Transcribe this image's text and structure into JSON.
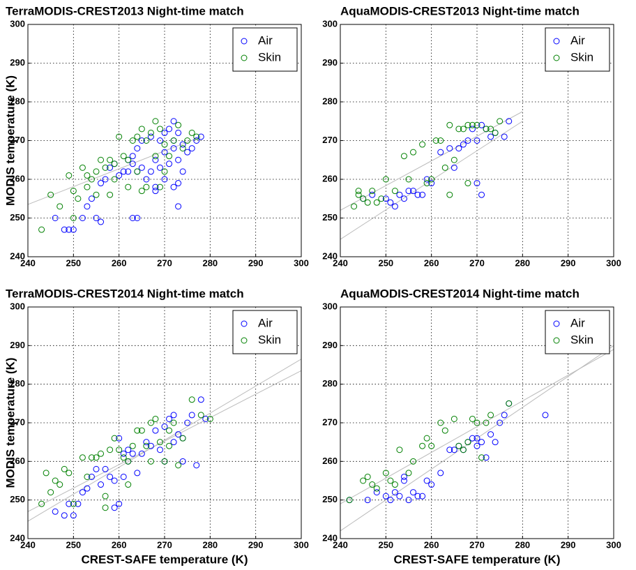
{
  "chart_data": [
    {
      "type": "scatter",
      "title": "TerraMODIS-CREST2013 Night-time match",
      "ylabel": "MODIS temperature (K)",
      "xlim": [
        240,
        300
      ],
      "ylim": [
        240,
        300
      ],
      "xticks": [
        240,
        250,
        260,
        270,
        280,
        290,
        300
      ],
      "yticks": [
        240,
        250,
        260,
        270,
        280,
        290,
        300
      ],
      "grid": true,
      "legend": "upper right",
      "series": [
        {
          "name": "Air",
          "color": "#0000ff",
          "x": [
            246,
            248,
            249,
            250,
            252,
            253,
            254,
            255,
            256,
            256,
            257,
            258,
            259,
            260,
            261,
            262,
            262,
            263,
            263,
            264,
            264,
            265,
            265,
            266,
            267,
            267,
            268,
            268,
            269,
            269,
            270,
            270,
            270,
            271,
            271,
            272,
            272,
            272,
            273,
            273,
            273,
            274,
            274,
            275,
            276,
            277,
            278,
            263,
            264,
            268,
            272,
            273
          ],
          "values": [
            250,
            247,
            247,
            247,
            250,
            253,
            255,
            250,
            249,
            259,
            260,
            263,
            264,
            261,
            262,
            265,
            262,
            266,
            264,
            268,
            262,
            270,
            263,
            260,
            271,
            262,
            257,
            265,
            270,
            263,
            272,
            267,
            260,
            273,
            264,
            275,
            270,
            258,
            253,
            265,
            259,
            269,
            262,
            267,
            268,
            270,
            271,
            250,
            250,
            258,
            268,
            272
          ]
        },
        {
          "name": "Skin",
          "color": "#008000",
          "x": [
            243,
            245,
            247,
            249,
            250,
            250,
            251,
            252,
            253,
            253,
            254,
            255,
            256,
            257,
            258,
            259,
            259,
            260,
            261,
            262,
            263,
            264,
            264,
            265,
            266,
            266,
            267,
            268,
            268,
            269,
            269,
            270,
            270,
            271,
            272,
            273,
            274,
            275,
            276,
            277,
            255,
            258,
            262,
            265
          ],
          "values": [
            247,
            256,
            253,
            261,
            257,
            250,
            255,
            263,
            261,
            258,
            260,
            262,
            265,
            263,
            265,
            264,
            260,
            271,
            266,
            265,
            270,
            271,
            262,
            273,
            270,
            258,
            272,
            275,
            266,
            273,
            258,
            269,
            262,
            266,
            270,
            274,
            268,
            270,
            272,
            271,
            256,
            256,
            258,
            257
          ]
        }
      ],
      "fit_lines": [
        {
          "color": "#bbbbbb",
          "x": [
            240,
            278
          ],
          "values": [
            253.5,
            271
          ]
        }
      ]
    },
    {
      "type": "scatter",
      "title": "AquaMODIS-CREST2013 Night-time match",
      "xlim": [
        240,
        300
      ],
      "ylim": [
        240,
        300
      ],
      "xticks": [
        240,
        250,
        260,
        270,
        280,
        290,
        300
      ],
      "yticks": [
        240,
        250,
        260,
        270,
        280,
        290,
        300
      ],
      "grid": true,
      "legend": "upper right",
      "series": [
        {
          "name": "Air",
          "color": "#0000ff",
          "x": [
            245,
            247,
            250,
            251,
            252,
            253,
            254,
            255,
            256,
            257,
            258,
            259,
            260,
            262,
            264,
            266,
            267,
            268,
            269,
            270,
            271,
            272,
            273,
            274,
            276,
            277,
            270,
            271,
            265
          ],
          "values": [
            255,
            256,
            255,
            254,
            253,
            256,
            255,
            257,
            257,
            256,
            256,
            260,
            259,
            267,
            268,
            268,
            269,
            270,
            273,
            270,
            274,
            273,
            271,
            272,
            271,
            275,
            259,
            256,
            263
          ]
        },
        {
          "name": "Skin",
          "color": "#008000",
          "x": [
            243,
            244,
            244,
            245,
            246,
            247,
            248,
            249,
            250,
            252,
            254,
            255,
            256,
            258,
            259,
            260,
            261,
            262,
            263,
            264,
            265,
            266,
            267,
            268,
            269,
            270,
            272,
            273,
            274,
            275,
            264,
            268
          ],
          "values": [
            253,
            257,
            256,
            255,
            254,
            257,
            254,
            255,
            260,
            257,
            266,
            260,
            267,
            269,
            259,
            260,
            270,
            270,
            263,
            274,
            265,
            273,
            273,
            274,
            274,
            274,
            273,
            273,
            272,
            275,
            256,
            259
          ]
        }
      ],
      "fit_lines": [
        {
          "color": "#bbbbbb",
          "x": [
            240,
            280
          ],
          "values": [
            252,
            277.5
          ]
        },
        {
          "color": "#bbbbbb",
          "x": [
            240,
            280
          ],
          "values": [
            244.5,
            275
          ]
        }
      ]
    },
    {
      "type": "scatter",
      "title": "TerraMODIS-CREST2014 Night-time match",
      "ylabel": "MODIS temperature (K)",
      "xlabel": "CREST-SAFE temperature (K)",
      "xlim": [
        240,
        300
      ],
      "ylim": [
        240,
        300
      ],
      "xticks": [
        240,
        250,
        260,
        270,
        280,
        290,
        300
      ],
      "yticks": [
        240,
        250,
        260,
        270,
        280,
        290,
        300
      ],
      "grid": true,
      "legend": "upper right",
      "series": [
        {
          "name": "Air",
          "color": "#0000ff",
          "x": [
            246,
            248,
            249,
            250,
            251,
            252,
            253,
            254,
            255,
            256,
            257,
            258,
            259,
            259,
            260,
            261,
            261,
            262,
            263,
            264,
            265,
            266,
            267,
            268,
            269,
            270,
            271,
            272,
            273,
            274,
            275,
            276,
            277,
            278,
            279,
            260,
            262,
            270,
            272,
            274
          ],
          "values": [
            247,
            246,
            249,
            246,
            249,
            252,
            253,
            256,
            258,
            254,
            258,
            256,
            255,
            248,
            266,
            256,
            262,
            263,
            262,
            257,
            262,
            265,
            264,
            268,
            263,
            269,
            271,
            272,
            267,
            266,
            270,
            272,
            259,
            276,
            271,
            249,
            260,
            260,
            265,
            260
          ]
        },
        {
          "name": "Skin",
          "color": "#008000",
          "x": [
            243,
            244,
            245,
            246,
            247,
            248,
            249,
            250,
            252,
            253,
            254,
            255,
            256,
            257,
            258,
            259,
            260,
            261,
            262,
            263,
            264,
            265,
            266,
            267,
            268,
            269,
            270,
            271,
            272,
            273,
            274,
            276,
            278,
            280,
            257,
            262,
            267,
            271
          ],
          "values": [
            249,
            257,
            252,
            255,
            254,
            258,
            257,
            249,
            261,
            256,
            261,
            261,
            262,
            251,
            263,
            266,
            263,
            261,
            260,
            264,
            268,
            268,
            264,
            270,
            271,
            265,
            260,
            268,
            270,
            259,
            266,
            276,
            272,
            271,
            248,
            254,
            260,
            264
          ]
        }
      ],
      "fit_lines": [
        {
          "color": "#bbbbbb",
          "x": [
            240,
            300
          ],
          "values": [
            244.5,
            286.5
          ]
        },
        {
          "color": "#bbbbbb",
          "x": [
            240,
            300
          ],
          "values": [
            247,
            283.5
          ]
        }
      ]
    },
    {
      "type": "scatter",
      "title": "AquaMODIS-CREST2014 Night-time match",
      "xlabel": "CREST-SAFE temperature (K)",
      "xlim": [
        240,
        300
      ],
      "ylim": [
        240,
        300
      ],
      "xticks": [
        240,
        250,
        260,
        270,
        280,
        290,
        300
      ],
      "yticks": [
        240,
        250,
        260,
        270,
        280,
        290,
        300
      ],
      "grid": true,
      "legend": "upper right",
      "series": [
        {
          "name": "Air",
          "color": "#0000ff",
          "x": [
            242,
            246,
            248,
            250,
            251,
            252,
            253,
            254,
            255,
            256,
            257,
            258,
            259,
            260,
            262,
            264,
            265,
            266,
            267,
            268,
            269,
            270,
            271,
            272,
            273,
            274,
            275,
            276,
            277,
            285,
            254,
            270
          ],
          "values": [
            250,
            250,
            252,
            251,
            250,
            252,
            251,
            255,
            250,
            252,
            251,
            251,
            255,
            254,
            257,
            263,
            263,
            264,
            263,
            265,
            266,
            264,
            265,
            261,
            267,
            265,
            270,
            272,
            275,
            272,
            256,
            266
          ]
        },
        {
          "name": "Skin",
          "color": "#008000",
          "x": [
            242,
            245,
            246,
            247,
            248,
            250,
            251,
            252,
            253,
            255,
            256,
            258,
            259,
            260,
            262,
            263,
            265,
            266,
            267,
            268,
            269,
            270,
            271,
            272,
            273,
            277
          ],
          "values": [
            250,
            255,
            256,
            254,
            253,
            257,
            255,
            254,
            263,
            257,
            260,
            264,
            266,
            264,
            270,
            268,
            271,
            264,
            263,
            265,
            271,
            270,
            261,
            270,
            272,
            275
          ]
        }
      ],
      "fit_lines": [
        {
          "color": "#bbbbbb",
          "x": [
            240,
            300
          ],
          "values": [
            249,
            289
          ]
        },
        {
          "color": "#bbbbbb",
          "x": [
            240,
            300
          ],
          "values": [
            242,
            290
          ]
        }
      ]
    }
  ]
}
